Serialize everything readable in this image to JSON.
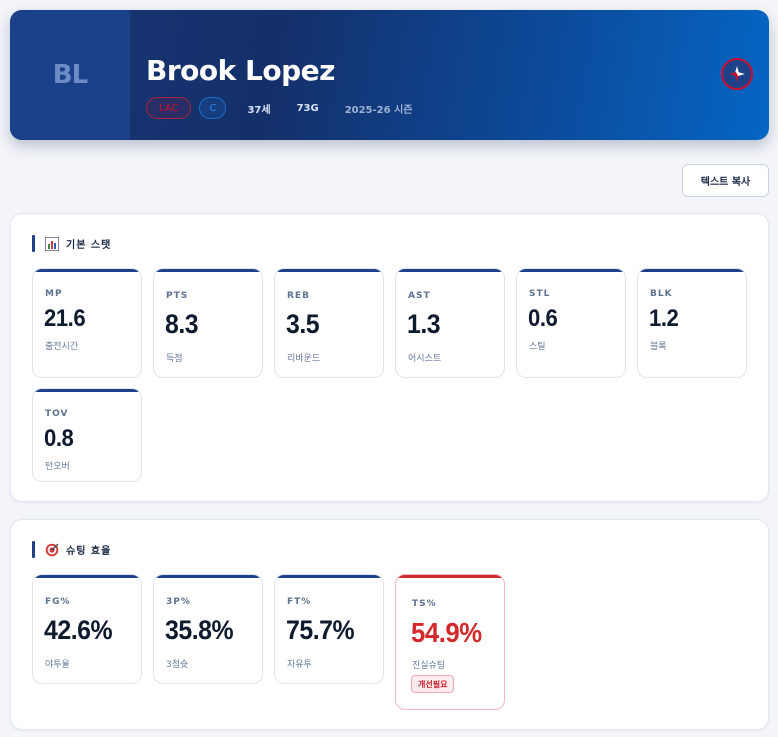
{
  "player": {
    "initials": "BL",
    "name": "Brook Lopez",
    "team": "LAC",
    "position": "C",
    "age": "37세",
    "games": "73G",
    "season": "2025-26 시즌",
    "team_logo_icon": "team-logo-icon"
  },
  "actions": {
    "copy_label": "텍스트 복사"
  },
  "basic_stats": {
    "title": "기본 스탯",
    "icon": "bar-chart-icon",
    "items": [
      {
        "label": "MP",
        "value": "21.6",
        "sub": "출전시간"
      },
      {
        "label": "PTS",
        "value": "8.3",
        "sub": "득점"
      },
      {
        "label": "REB",
        "value": "3.5",
        "sub": "리바운드"
      },
      {
        "label": "AST",
        "value": "1.3",
        "sub": "어시스트"
      },
      {
        "label": "STL",
        "value": "0.6",
        "sub": "스틸"
      },
      {
        "label": "BLK",
        "value": "1.2",
        "sub": "블록"
      },
      {
        "label": "TOV",
        "value": "0.8",
        "sub": "턴오버"
      }
    ]
  },
  "shooting": {
    "title": "슈팅 효율",
    "icon": "target-icon",
    "items": [
      {
        "label": "FG%",
        "value": "42.6%",
        "sub": "야투율"
      },
      {
        "label": "3P%",
        "value": "35.8%",
        "sub": "3점슛"
      },
      {
        "label": "FT%",
        "value": "75.7%",
        "sub": "자유투"
      },
      {
        "label": "TS%",
        "value": "54.9%",
        "sub": "진실슈팅",
        "badge": "개선필요"
      }
    ]
  },
  "colors": {
    "accent": "#1d428a",
    "warn": "#d22a2a",
    "team": "#c8102e"
  }
}
